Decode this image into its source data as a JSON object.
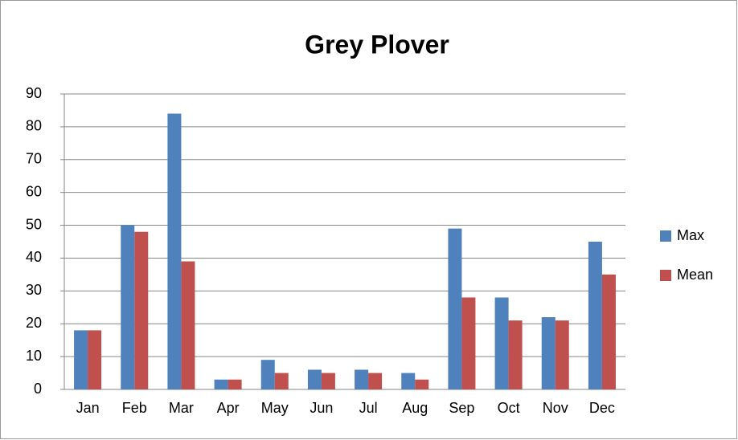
{
  "chart_data": {
    "type": "bar",
    "title": "Grey Plover",
    "categories": [
      "Jan",
      "Feb",
      "Mar",
      "Apr",
      "May",
      "Jun",
      "Jul",
      "Aug",
      "Sep",
      "Oct",
      "Nov",
      "Dec"
    ],
    "series": [
      {
        "name": "Max",
        "color": "#4f81bd",
        "values": [
          18,
          50,
          84,
          3,
          9,
          6,
          6,
          5,
          49,
          28,
          22,
          45
        ]
      },
      {
        "name": "Mean",
        "color": "#c0504d",
        "values": [
          18,
          48,
          39,
          3,
          5,
          5,
          5,
          3,
          28,
          21,
          21,
          35
        ]
      }
    ],
    "ylim": [
      0,
      90
    ],
    "yticks": [
      0,
      10,
      20,
      30,
      40,
      50,
      60,
      70,
      80,
      90
    ],
    "grid": true,
    "legend": "right"
  }
}
